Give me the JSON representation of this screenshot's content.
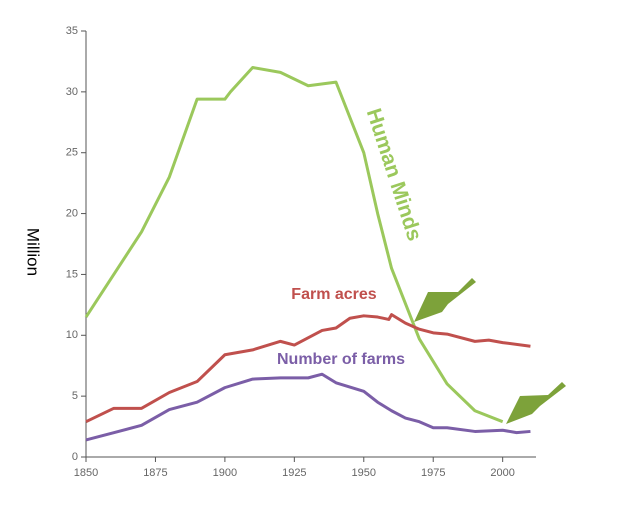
{
  "chart_data": {
    "type": "line",
    "y_label": "Million",
    "xlim": [
      1850,
      2012
    ],
    "xticks": [
      1850,
      1875,
      1900,
      1925,
      1950,
      1975,
      2000
    ],
    "ylim": [
      0,
      35
    ],
    "yticks": [
      0,
      5,
      10,
      15,
      20,
      25,
      30,
      35
    ],
    "grid": false,
    "series": [
      {
        "name": "Human Minds",
        "color": "#9bc85c",
        "x": [
          1850,
          1860,
          1870,
          1880,
          1890,
          1900,
          1902,
          1910,
          1920,
          1930,
          1940,
          1950,
          1955,
          1960,
          1970,
          1980,
          1990,
          2000
        ],
        "values": [
          11.5,
          15,
          18.5,
          23,
          29.4,
          29.4,
          30,
          32,
          31.6,
          30.5,
          30.8,
          25,
          20,
          15.5,
          9.7,
          6,
          3.8,
          2.9
        ]
      },
      {
        "name": "Farm acres",
        "color": "#c0504d",
        "x": [
          1850,
          1860,
          1870,
          1880,
          1890,
          1900,
          1910,
          1920,
          1925,
          1935,
          1940,
          1945,
          1950,
          1955,
          1959,
          1960,
          1965,
          1970,
          1975,
          1980,
          1990,
          1995,
          2000,
          2010
        ],
        "values": [
          2.9,
          4,
          4,
          5.3,
          6.2,
          8.4,
          8.8,
          9.5,
          9.2,
          10.4,
          10.6,
          11.4,
          11.6,
          11.5,
          11.3,
          11.7,
          11,
          10.5,
          10.2,
          10.1,
          9.5,
          9.6,
          9.4,
          9.1
        ]
      },
      {
        "name": "Number of farms",
        "color": "#7b5ea7",
        "x": [
          1850,
          1860,
          1870,
          1880,
          1890,
          1900,
          1910,
          1920,
          1930,
          1935,
          1940,
          1950,
          1955,
          1960,
          1965,
          1970,
          1975,
          1980,
          1990,
          2000,
          2005,
          2010
        ],
        "values": [
          1.4,
          2,
          2.6,
          3.9,
          4.5,
          5.7,
          6.4,
          6.5,
          6.5,
          6.8,
          6.1,
          5.4,
          4.5,
          3.8,
          3.2,
          2.9,
          2.4,
          2.4,
          2.1,
          2.2,
          2.0,
          2.1
        ]
      }
    ]
  }
}
